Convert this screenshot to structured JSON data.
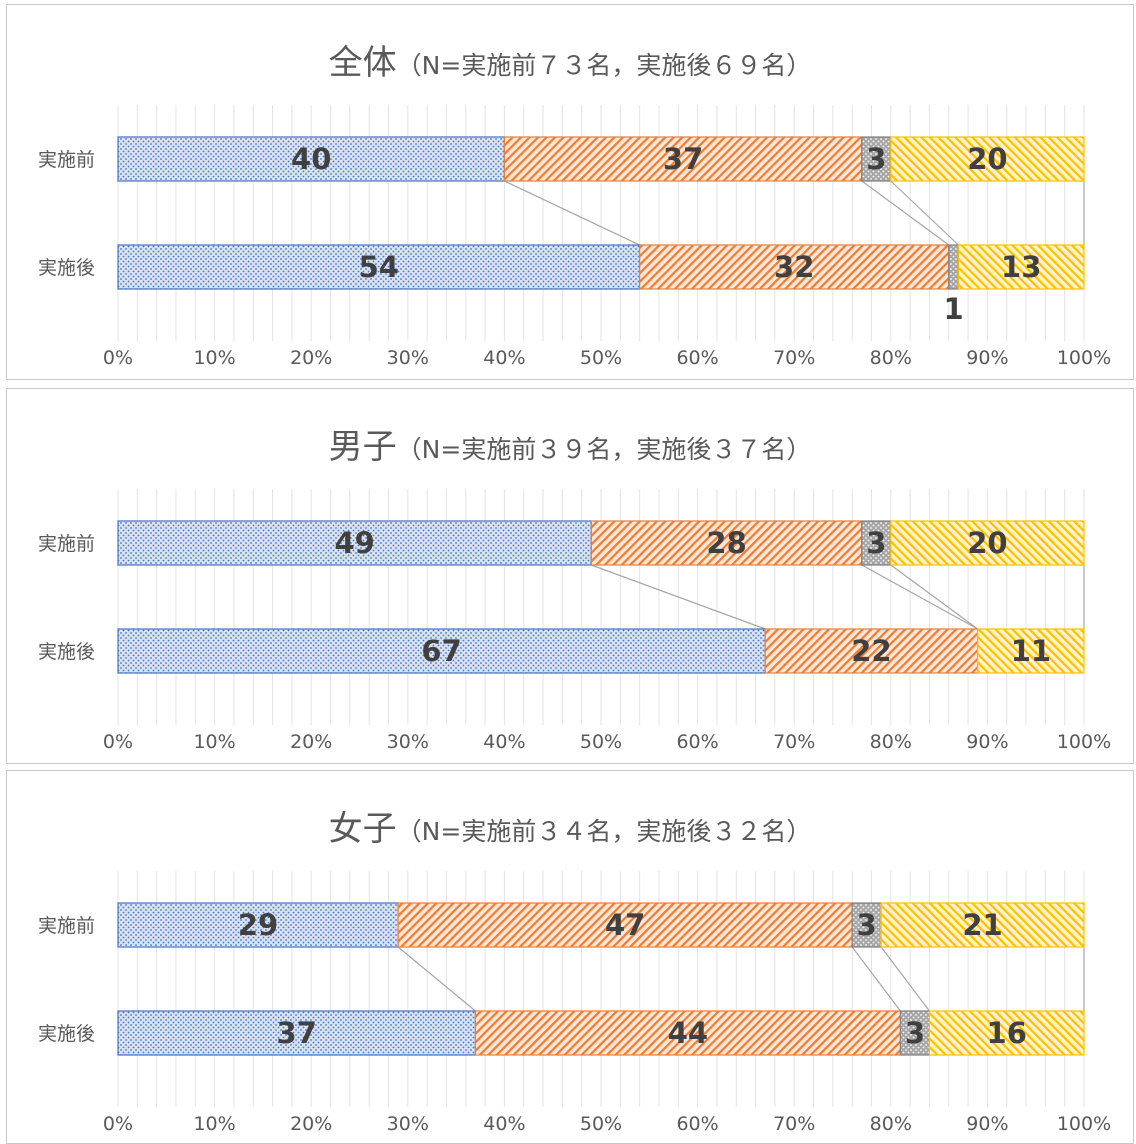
{
  "chart_data": [
    {
      "type": "bar",
      "stacked": "percent",
      "orientation": "horizontal",
      "title": "全体",
      "subtitle": "（N=実施前７３名，実施後６９名）",
      "categories": [
        "実施前",
        "実施後"
      ],
      "series": [
        {
          "values": [
            40,
            54
          ]
        },
        {
          "values": [
            37,
            32
          ]
        },
        {
          "values": [
            3,
            1
          ]
        },
        {
          "values": [
            20,
            13
          ]
        }
      ],
      "xticks": [
        "0%",
        "10%",
        "20%",
        "30%",
        "40%",
        "50%",
        "60%",
        "70%",
        "80%",
        "90%",
        "100%"
      ],
      "xlim": [
        0,
        100
      ],
      "legend": "none"
    },
    {
      "type": "bar",
      "stacked": "percent",
      "orientation": "horizontal",
      "title": "男子",
      "subtitle": "（N=実施前３９名，実施後３７名）",
      "categories": [
        "実施前",
        "実施後"
      ],
      "series": [
        {
          "values": [
            49,
            67
          ]
        },
        {
          "values": [
            28,
            22
          ]
        },
        {
          "values": [
            3,
            0
          ]
        },
        {
          "values": [
            20,
            11
          ]
        }
      ],
      "xticks": [
        "0%",
        "10%",
        "20%",
        "30%",
        "40%",
        "50%",
        "60%",
        "70%",
        "80%",
        "90%",
        "100%"
      ],
      "xlim": [
        0,
        100
      ],
      "legend": "none"
    },
    {
      "type": "bar",
      "stacked": "percent",
      "orientation": "horizontal",
      "title": "女子",
      "subtitle": "（N=実施前３４名，実施後３２名）",
      "categories": [
        "実施前",
        "実施後"
      ],
      "series": [
        {
          "values": [
            29,
            37
          ]
        },
        {
          "values": [
            47,
            44
          ]
        },
        {
          "values": [
            3,
            3
          ]
        },
        {
          "values": [
            21,
            16
          ]
        }
      ],
      "xticks": [
        "0%",
        "10%",
        "20%",
        "30%",
        "40%",
        "50%",
        "60%",
        "70%",
        "80%",
        "90%",
        "100%"
      ],
      "xlim": [
        0,
        100
      ],
      "legend": "none"
    }
  ],
  "style": {
    "colors": [
      "#4472c4",
      "#ed7d31",
      "#7f7f7f",
      "#ffc000"
    ],
    "patterns": [
      "dots",
      "diagonal-hatch",
      "dots",
      "diagonal-hatch"
    ],
    "value_label_color": "#404040",
    "axis_text_color": "#595959"
  }
}
